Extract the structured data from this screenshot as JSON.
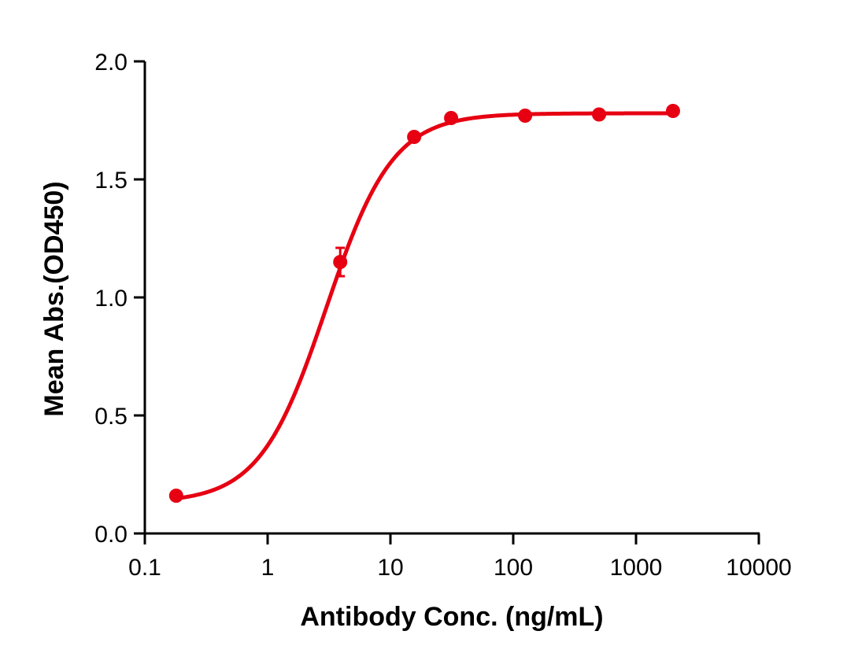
{
  "chart_data": {
    "type": "scatter",
    "title": "",
    "xlabel": "Antibody Conc. (ng/mL)",
    "ylabel": "Mean Abs.(OD450)",
    "xscale": "log",
    "xlim": [
      0.1,
      10000
    ],
    "ylim": [
      0.0,
      2.0
    ],
    "xticks": [
      "0.1",
      "1",
      "10",
      "100",
      "1000",
      "10000"
    ],
    "yticks": [
      "0.0",
      "0.5",
      "1.0",
      "1.5",
      "2.0"
    ],
    "grid": false,
    "legend": null,
    "color": "#e60012",
    "series": [
      {
        "name": "Mean Abs.",
        "x": [
          0.18,
          3.9,
          15.6,
          31.2,
          125,
          500,
          2000
        ],
        "y": [
          0.16,
          1.15,
          1.68,
          1.76,
          1.77,
          1.775,
          1.79
        ],
        "error": [
          0,
          0.06,
          0,
          0,
          0,
          0,
          0
        ],
        "fit": "4PL sigmoid"
      }
    ]
  }
}
